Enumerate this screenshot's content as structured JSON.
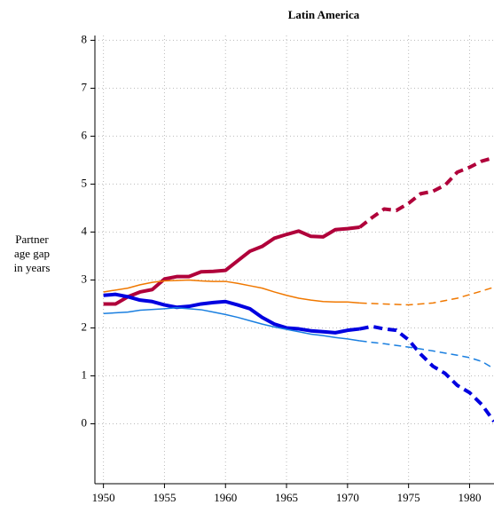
{
  "chart_data": {
    "type": "line",
    "title": "Latin America",
    "ylabel": [
      "Partner",
      "age gap",
      "in years"
    ],
    "xlim": [
      1949.3,
      1982
    ],
    "xticks": [
      1950,
      1955,
      1960,
      1965,
      1970,
      1975,
      1980
    ],
    "ylim": [
      -1.25,
      8.1
    ],
    "yticks": [
      0,
      1,
      2,
      3,
      4,
      5,
      6,
      7,
      8
    ],
    "grid": true,
    "series": [
      {
        "color": "#b0003a",
        "width": 4,
        "dash": false,
        "x": [
          1950,
          1951,
          1952,
          1953,
          1954,
          1955,
          1956,
          1957,
          1958,
          1959,
          1960,
          1961,
          1962,
          1963,
          1964,
          1965,
          1966,
          1967,
          1968,
          1969,
          1970,
          1971
        ],
        "values": [
          2.5,
          2.5,
          2.65,
          2.75,
          2.8,
          3.02,
          3.07,
          3.07,
          3.17,
          3.18,
          3.2,
          3.4,
          3.6,
          3.7,
          3.87,
          3.95,
          4.02,
          3.91,
          3.9,
          4.05,
          4.07,
          4.1
        ]
      },
      {
        "color": "#b0003a",
        "width": 4,
        "dash": true,
        "x": [
          1971,
          1972,
          1973,
          1974,
          1975,
          1976,
          1977,
          1978,
          1979,
          1980,
          1981,
          1982
        ],
        "values": [
          4.1,
          4.3,
          4.48,
          4.45,
          4.6,
          4.8,
          4.85,
          4.98,
          5.25,
          5.35,
          5.48,
          5.55
        ]
      },
      {
        "color": "#f07800",
        "width": 1.5,
        "dash": false,
        "x": [
          1950,
          1952,
          1953,
          1954,
          1955,
          1956,
          1957,
          1958,
          1959,
          1960,
          1961,
          1962,
          1963,
          1964,
          1965,
          1966,
          1967,
          1968,
          1969,
          1970,
          1971
        ],
        "values": [
          2.75,
          2.83,
          2.9,
          2.95,
          2.98,
          2.99,
          3.0,
          2.98,
          2.97,
          2.97,
          2.93,
          2.88,
          2.83,
          2.75,
          2.68,
          2.62,
          2.58,
          2.55,
          2.54,
          2.54,
          2.52
        ]
      },
      {
        "color": "#f07800",
        "width": 1.5,
        "dash": true,
        "x": [
          1971,
          1973,
          1975,
          1977,
          1979,
          1981,
          1982
        ],
        "values": [
          2.52,
          2.5,
          2.48,
          2.52,
          2.62,
          2.77,
          2.85
        ]
      },
      {
        "color": "#0000e0",
        "width": 4,
        "dash": false,
        "x": [
          1950,
          1951,
          1952,
          1953,
          1954,
          1955,
          1956,
          1957,
          1958,
          1959,
          1960,
          1961,
          1962,
          1963,
          1964,
          1965,
          1966,
          1967,
          1968,
          1969,
          1970,
          1971
        ],
        "values": [
          2.68,
          2.7,
          2.65,
          2.58,
          2.55,
          2.48,
          2.43,
          2.45,
          2.5,
          2.53,
          2.55,
          2.48,
          2.4,
          2.22,
          2.08,
          2.0,
          1.98,
          1.94,
          1.92,
          1.9,
          1.95,
          1.98
        ]
      },
      {
        "color": "#0000e0",
        "width": 4,
        "dash": true,
        "x": [
          1971,
          1972,
          1973,
          1974,
          1975,
          1976,
          1977,
          1978,
          1979,
          1980,
          1981,
          1982
        ],
        "values": [
          1.98,
          2.03,
          1.98,
          1.95,
          1.75,
          1.45,
          1.2,
          1.05,
          0.8,
          0.65,
          0.4,
          0.05
        ]
      },
      {
        "color": "#1a7fe0",
        "width": 1.5,
        "dash": false,
        "x": [
          1950,
          1952,
          1953,
          1955,
          1956,
          1957,
          1958,
          1959,
          1960,
          1961,
          1962,
          1963,
          1964,
          1965,
          1966,
          1967,
          1968,
          1969,
          1970,
          1971
        ],
        "values": [
          2.3,
          2.33,
          2.37,
          2.4,
          2.42,
          2.4,
          2.38,
          2.33,
          2.28,
          2.22,
          2.15,
          2.08,
          2.02,
          1.97,
          1.92,
          1.87,
          1.84,
          1.8,
          1.77,
          1.73
        ]
      },
      {
        "color": "#1a7fe0",
        "width": 1.5,
        "dash": true,
        "x": [
          1971,
          1973,
          1975,
          1977,
          1979,
          1980,
          1981,
          1982
        ],
        "values": [
          1.73,
          1.67,
          1.6,
          1.52,
          1.43,
          1.38,
          1.3,
          1.15
        ]
      }
    ]
  }
}
